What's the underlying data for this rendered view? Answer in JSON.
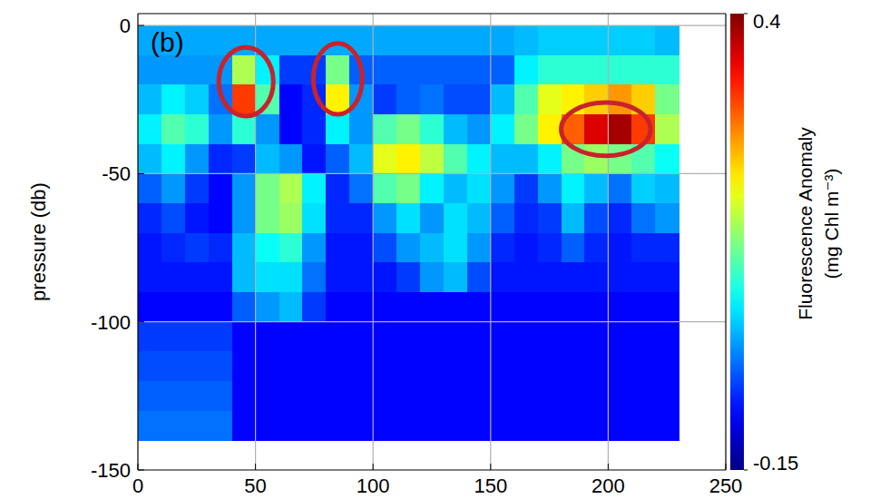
{
  "chart_data": {
    "type": "heatmap",
    "panel_label": "(b)",
    "y_label": "pressure (db)",
    "xlim": [
      0,
      250
    ],
    "xticks": [
      0,
      50,
      100,
      150,
      200,
      250
    ],
    "ylim": [
      -150,
      4
    ],
    "yticks": [
      0,
      -50,
      -100,
      -150
    ],
    "grid": true,
    "x": [
      5,
      15,
      25,
      35,
      45,
      55,
      65,
      75,
      85,
      95,
      105,
      115,
      125,
      135,
      145,
      155,
      165,
      175,
      185,
      195,
      205,
      215,
      225
    ],
    "y": [
      -5,
      -15,
      -25,
      -35,
      -45,
      -55,
      -65,
      -75,
      -85,
      -95,
      -105,
      -115,
      -125,
      -135
    ],
    "cells": [
      [
        0.01,
        0.01,
        0.01,
        0.01,
        0.01,
        0.01,
        0.01,
        0.01,
        0.01,
        0.01,
        0.01,
        0.01,
        0.01,
        0.01,
        0.01,
        0.01,
        0.02,
        0.03,
        0.03,
        0.03,
        0.03,
        0.03,
        0.02
      ],
      [
        0.0,
        0.0,
        0.0,
        0.0,
        0.15,
        0.05,
        -0.05,
        -0.05,
        0.12,
        -0.03,
        -0.03,
        -0.03,
        -0.03,
        -0.03,
        -0.03,
        -0.03,
        0.05,
        0.08,
        0.08,
        0.08,
        0.08,
        0.08,
        0.08
      ],
      [
        0.02,
        0.05,
        0.03,
        -0.02,
        0.3,
        0.1,
        -0.08,
        -0.06,
        0.2,
        0.0,
        -0.05,
        -0.03,
        -0.02,
        -0.04,
        -0.04,
        0.02,
        0.1,
        0.18,
        0.2,
        0.22,
        0.25,
        0.22,
        0.12
      ],
      [
        0.05,
        0.1,
        0.08,
        0.0,
        0.08,
        0.0,
        -0.08,
        -0.06,
        0.05,
        0.0,
        0.1,
        0.12,
        0.08,
        0.02,
        0.0,
        0.05,
        0.12,
        0.2,
        0.28,
        0.35,
        0.38,
        0.3,
        0.15
      ],
      [
        0.02,
        0.05,
        0.0,
        -0.06,
        -0.05,
        0.02,
        0.0,
        -0.07,
        -0.03,
        0.02,
        0.18,
        0.2,
        0.16,
        0.1,
        0.05,
        0.02,
        0.02,
        0.05,
        0.12,
        0.14,
        0.12,
        0.1,
        0.06
      ],
      [
        -0.03,
        0.0,
        -0.05,
        -0.08,
        0.0,
        0.12,
        0.15,
        0.05,
        -0.06,
        -0.02,
        0.1,
        0.12,
        0.05,
        0.02,
        0.04,
        0.0,
        -0.05,
        0.0,
        0.05,
        0.02,
        -0.02,
        0.03,
        0.02
      ],
      [
        -0.06,
        -0.04,
        -0.07,
        -0.08,
        0.0,
        0.12,
        0.14,
        0.04,
        -0.06,
        -0.06,
        0.0,
        0.04,
        0.0,
        0.04,
        0.02,
        -0.03,
        -0.06,
        -0.05,
        0.02,
        -0.04,
        -0.06,
        -0.02,
        0.0
      ],
      [
        -0.07,
        -0.06,
        -0.05,
        -0.06,
        0.02,
        0.06,
        0.08,
        0.0,
        -0.07,
        -0.07,
        -0.04,
        0.0,
        0.02,
        0.04,
        0.0,
        -0.06,
        -0.07,
        -0.06,
        -0.03,
        -0.06,
        -0.07,
        -0.06,
        -0.06
      ],
      [
        -0.07,
        -0.07,
        -0.07,
        -0.07,
        0.02,
        0.04,
        0.04,
        -0.02,
        -0.07,
        -0.07,
        -0.07,
        -0.05,
        0.0,
        0.02,
        -0.04,
        -0.07,
        -0.07,
        -0.07,
        -0.07,
        -0.07,
        -0.07,
        -0.07,
        -0.07
      ],
      [
        -0.08,
        -0.08,
        -0.08,
        -0.08,
        -0.03,
        0.0,
        0.02,
        -0.05,
        -0.08,
        -0.08,
        -0.08,
        -0.08,
        -0.08,
        -0.08,
        -0.08,
        -0.08,
        -0.08,
        -0.08,
        -0.08,
        -0.08,
        -0.08,
        -0.08,
        -0.08
      ],
      [
        -0.05,
        -0.05,
        -0.05,
        -0.05,
        -0.08,
        -0.08,
        -0.08,
        -0.08,
        -0.08,
        -0.08,
        -0.08,
        -0.08,
        -0.08,
        -0.08,
        -0.08,
        -0.08,
        -0.08,
        -0.08,
        -0.08,
        -0.08,
        -0.08,
        -0.08,
        -0.08
      ],
      [
        -0.04,
        -0.04,
        -0.04,
        -0.04,
        -0.08,
        -0.08,
        -0.08,
        -0.08,
        -0.08,
        -0.08,
        -0.08,
        -0.08,
        -0.08,
        -0.08,
        -0.08,
        -0.08,
        -0.08,
        -0.08,
        -0.08,
        -0.08,
        -0.08,
        -0.08,
        -0.08
      ],
      [
        -0.03,
        -0.03,
        -0.03,
        -0.03,
        -0.08,
        -0.08,
        -0.08,
        -0.08,
        -0.08,
        -0.08,
        -0.08,
        -0.08,
        -0.08,
        -0.08,
        -0.08,
        -0.08,
        -0.08,
        -0.08,
        -0.08,
        -0.08,
        -0.08,
        -0.08,
        -0.08
      ],
      [
        -0.02,
        -0.02,
        -0.02,
        -0.02,
        -0.08,
        -0.08,
        -0.08,
        -0.08,
        -0.08,
        -0.08,
        -0.08,
        -0.08,
        -0.08,
        -0.08,
        -0.08,
        -0.08,
        -0.08,
        -0.08,
        -0.08,
        -0.08,
        -0.08,
        -0.08,
        -0.08
      ]
    ],
    "colorbar": {
      "title": "Fluorescence  Anomaly",
      "units": "(mg Chl m⁻³)",
      "range": [
        -0.15,
        0.4
      ],
      "ticks": [
        0.4,
        -0.15
      ]
    },
    "highlights": [
      {
        "x": 46,
        "y": -19,
        "rx": 11.6,
        "ry": 11.6
      },
      {
        "x": 85,
        "y": -18,
        "rx": 10.4,
        "ry": 12
      },
      {
        "x": 199,
        "y": -35,
        "rx": 19,
        "ry": 9
      }
    ],
    "highlight_color": "#c8232c"
  }
}
